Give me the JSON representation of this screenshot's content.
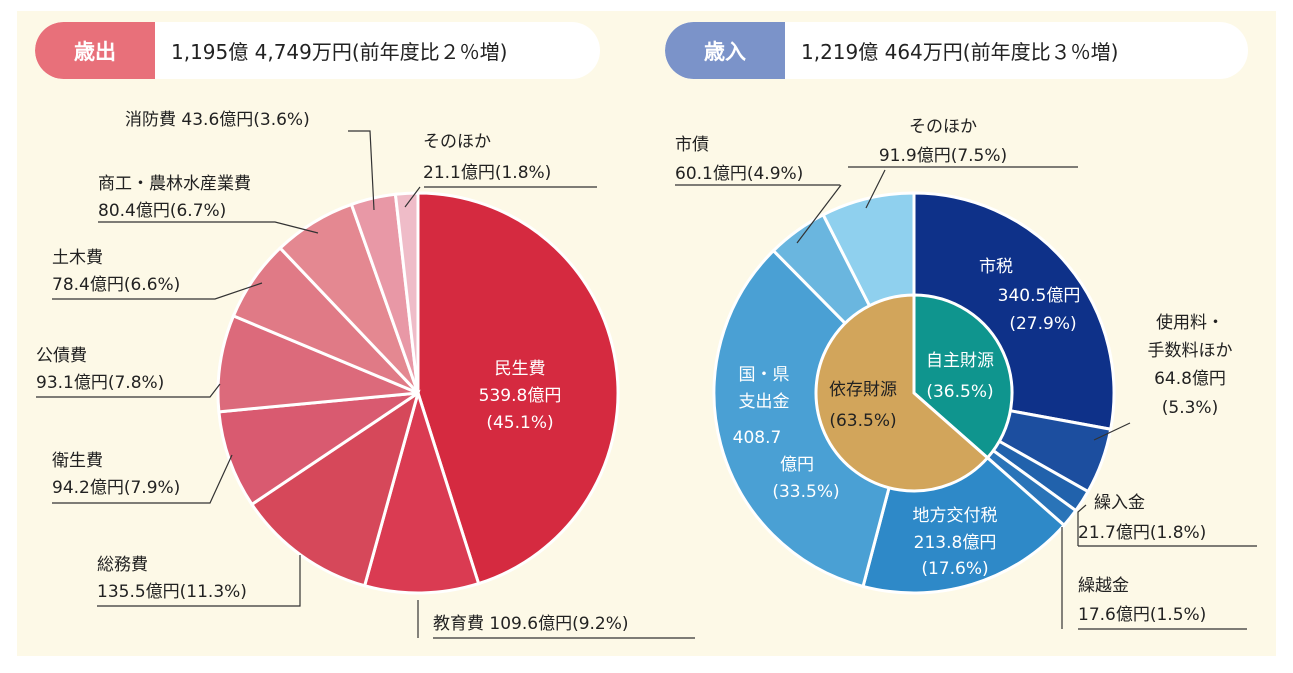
{
  "expenditure": {
    "tag": "歳出",
    "total": "1,195億 4,749万円(前年度比２％増)",
    "accent": "#e8707a"
  },
  "revenue": {
    "tag": "歳入",
    "total": "1,219億 464万円(前年度比３％増)",
    "accent": "#7b93c9"
  },
  "chart_data": [
    {
      "type": "pie",
      "title": "歳出",
      "slices": [
        {
          "label": "民生費",
          "value": 45.1,
          "amount": "539.8億円",
          "pct": "(45.1%)",
          "color": "#d52a40"
        },
        {
          "label": "教育費",
          "value": 9.2,
          "amount": "109.6億円",
          "pct": "(9.2%)",
          "color": "#da3b52"
        },
        {
          "label": "総務費",
          "value": 11.3,
          "amount": "135.5億円",
          "pct": "(11.3%)",
          "color": "#d6485a"
        },
        {
          "label": "衛生費",
          "value": 7.9,
          "amount": "94.2億円",
          "pct": "(7.9%)",
          "color": "#d95a70"
        },
        {
          "label": "公債費",
          "value": 7.8,
          "amount": "93.1億円",
          "pct": "(7.8%)",
          "color": "#dc6a7b"
        },
        {
          "label": "土木費",
          "value": 6.6,
          "amount": "78.4億円",
          "pct": "(6.6%)",
          "color": "#e07a86"
        },
        {
          "label": "商工・農林水産業費",
          "value": 6.7,
          "amount": "80.4億円",
          "pct": "(6.7%)",
          "color": "#e48891"
        },
        {
          "label": "消防費",
          "value": 3.6,
          "amount": "43.6億円",
          "pct": "(3.6%)",
          "color": "#e898a6"
        },
        {
          "label": "そのほか",
          "value": 1.8,
          "amount": "21.1億円",
          "pct": "(1.8%)",
          "color": "#efbcc8"
        }
      ],
      "texts": {
        "minsei": [
          "民生費",
          "539.8億円",
          "(45.1%)"
        ],
        "kyoiku": "教育費  109.6億円(9.2%)",
        "somu": [
          "総務費",
          "135.5億円(11.3%)"
        ],
        "eisei": [
          "衛生費",
          "94.2億円(7.9%)"
        ],
        "kosai": [
          "公債費",
          "93.1億円(7.8%)"
        ],
        "doboku": [
          "土木費",
          "78.4億円(6.6%)"
        ],
        "shoko": [
          "商工・農林水産業費",
          "80.4億円(6.7%)"
        ],
        "shobo": "消防費 43.6億円(3.6%)",
        "sonota": [
          "そのほか",
          "21.1億円(1.8%)"
        ]
      }
    },
    {
      "type": "pie",
      "title": "歳入",
      "slices": [
        {
          "label": "市税",
          "value": 27.9,
          "amount": "340.5億円",
          "pct": "(27.9%)",
          "color": "#0e3189"
        },
        {
          "label": "使用料・手数料ほか",
          "value": 5.3,
          "amount": "64.8億円",
          "pct": "(5.3%)",
          "color": "#1c4e9f"
        },
        {
          "label": "繰入金",
          "value": 1.8,
          "amount": "21.7億円",
          "pct": "(1.8%)",
          "color": "#2162ac"
        },
        {
          "label": "繰越金",
          "value": 1.5,
          "amount": "17.6億円",
          "pct": "(1.5%)",
          "color": "#2a74b8"
        },
        {
          "label": "地方交付税",
          "value": 17.6,
          "amount": "213.8億円",
          "pct": "(17.6%)",
          "color": "#2e89c8"
        },
        {
          "label": "国・県支出金",
          "value": 33.5,
          "amount": "408.7億円",
          "pct": "(33.5%)",
          "color": "#4aa0d4"
        },
        {
          "label": "市債",
          "value": 4.9,
          "amount": "60.1億円",
          "pct": "(4.9%)",
          "color": "#6ab6df"
        },
        {
          "label": "そのほか",
          "value": 7.5,
          "amount": "91.9億円",
          "pct": "(7.5%)",
          "color": "#8fd0ee"
        }
      ],
      "inner": [
        {
          "label": "自主財源",
          "value": 36.5,
          "pct": "(36.5%)",
          "color": "#0f958e"
        },
        {
          "label": "依存財源",
          "value": 63.5,
          "pct": "(63.5%)",
          "color": "#d2a55b"
        }
      ],
      "texts": {
        "shizei": [
          "市税",
          "340.5億円",
          "(27.9%)"
        ],
        "shiyo": [
          "使用料・",
          "手数料ほか",
          "64.8億円",
          "(5.3%)"
        ],
        "kuriire": [
          "繰入金",
          "21.7億円(1.8%)"
        ],
        "kurikoshi": [
          "繰越金",
          "17.6億円(1.5%)"
        ],
        "chiho": [
          "地方交付税",
          "213.8億円",
          "(17.6%)"
        ],
        "kokuken": [
          "国・県",
          "支出金",
          "408.7",
          "億円",
          "(33.5%)"
        ],
        "shisai": [
          "市債",
          "60.1億円(4.9%)"
        ],
        "sonota": [
          "そのほか",
          "91.9億円(7.5%)"
        ],
        "jishu": [
          "自主財源",
          "(36.5%)"
        ],
        "izon": [
          "依存財源",
          "(63.5%)"
        ]
      }
    }
  ]
}
